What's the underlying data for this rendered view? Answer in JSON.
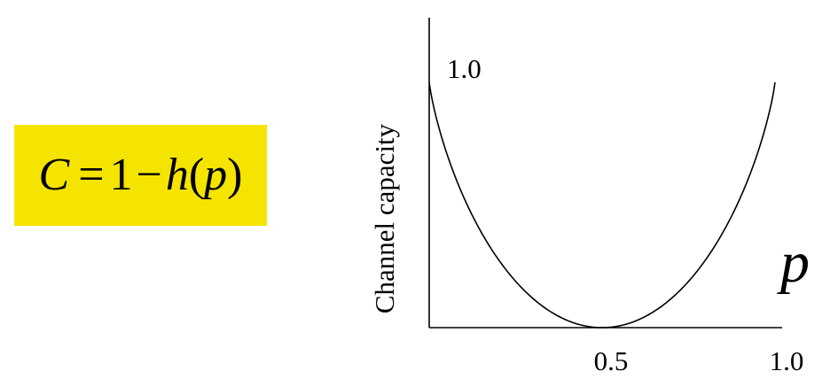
{
  "formula": {
    "lhs": "C",
    "equals": "=",
    "one": "1",
    "minus": "−",
    "func": "h",
    "open": "(",
    "arg": "p",
    "close": ")",
    "highlight_color": "#f5e400"
  },
  "chart_data": {
    "type": "line",
    "ylabel": "Channel capacity",
    "xlabel": "p",
    "x_ticks": [
      "0.5",
      "1.0"
    ],
    "y_ticks": [
      "1.0"
    ],
    "xlim": [
      0,
      1.0
    ],
    "ylim": [
      0,
      1.0
    ],
    "grid": false,
    "series": [
      {
        "color": "#000000",
        "x": [
          0,
          0.05,
          0.1,
          0.15,
          0.2,
          0.25,
          0.3,
          0.35,
          0.4,
          0.45,
          0.5,
          0.55,
          0.6,
          0.65,
          0.7,
          0.75,
          0.8,
          0.85,
          0.9,
          0.95,
          1.0
        ],
        "y": [
          1.0,
          0.714,
          0.531,
          0.39,
          0.278,
          0.189,
          0.119,
          0.066,
          0.029,
          0.007,
          0.0,
          0.007,
          0.029,
          0.066,
          0.119,
          0.189,
          0.278,
          0.39,
          0.531,
          0.714,
          1.0
        ]
      }
    ]
  }
}
